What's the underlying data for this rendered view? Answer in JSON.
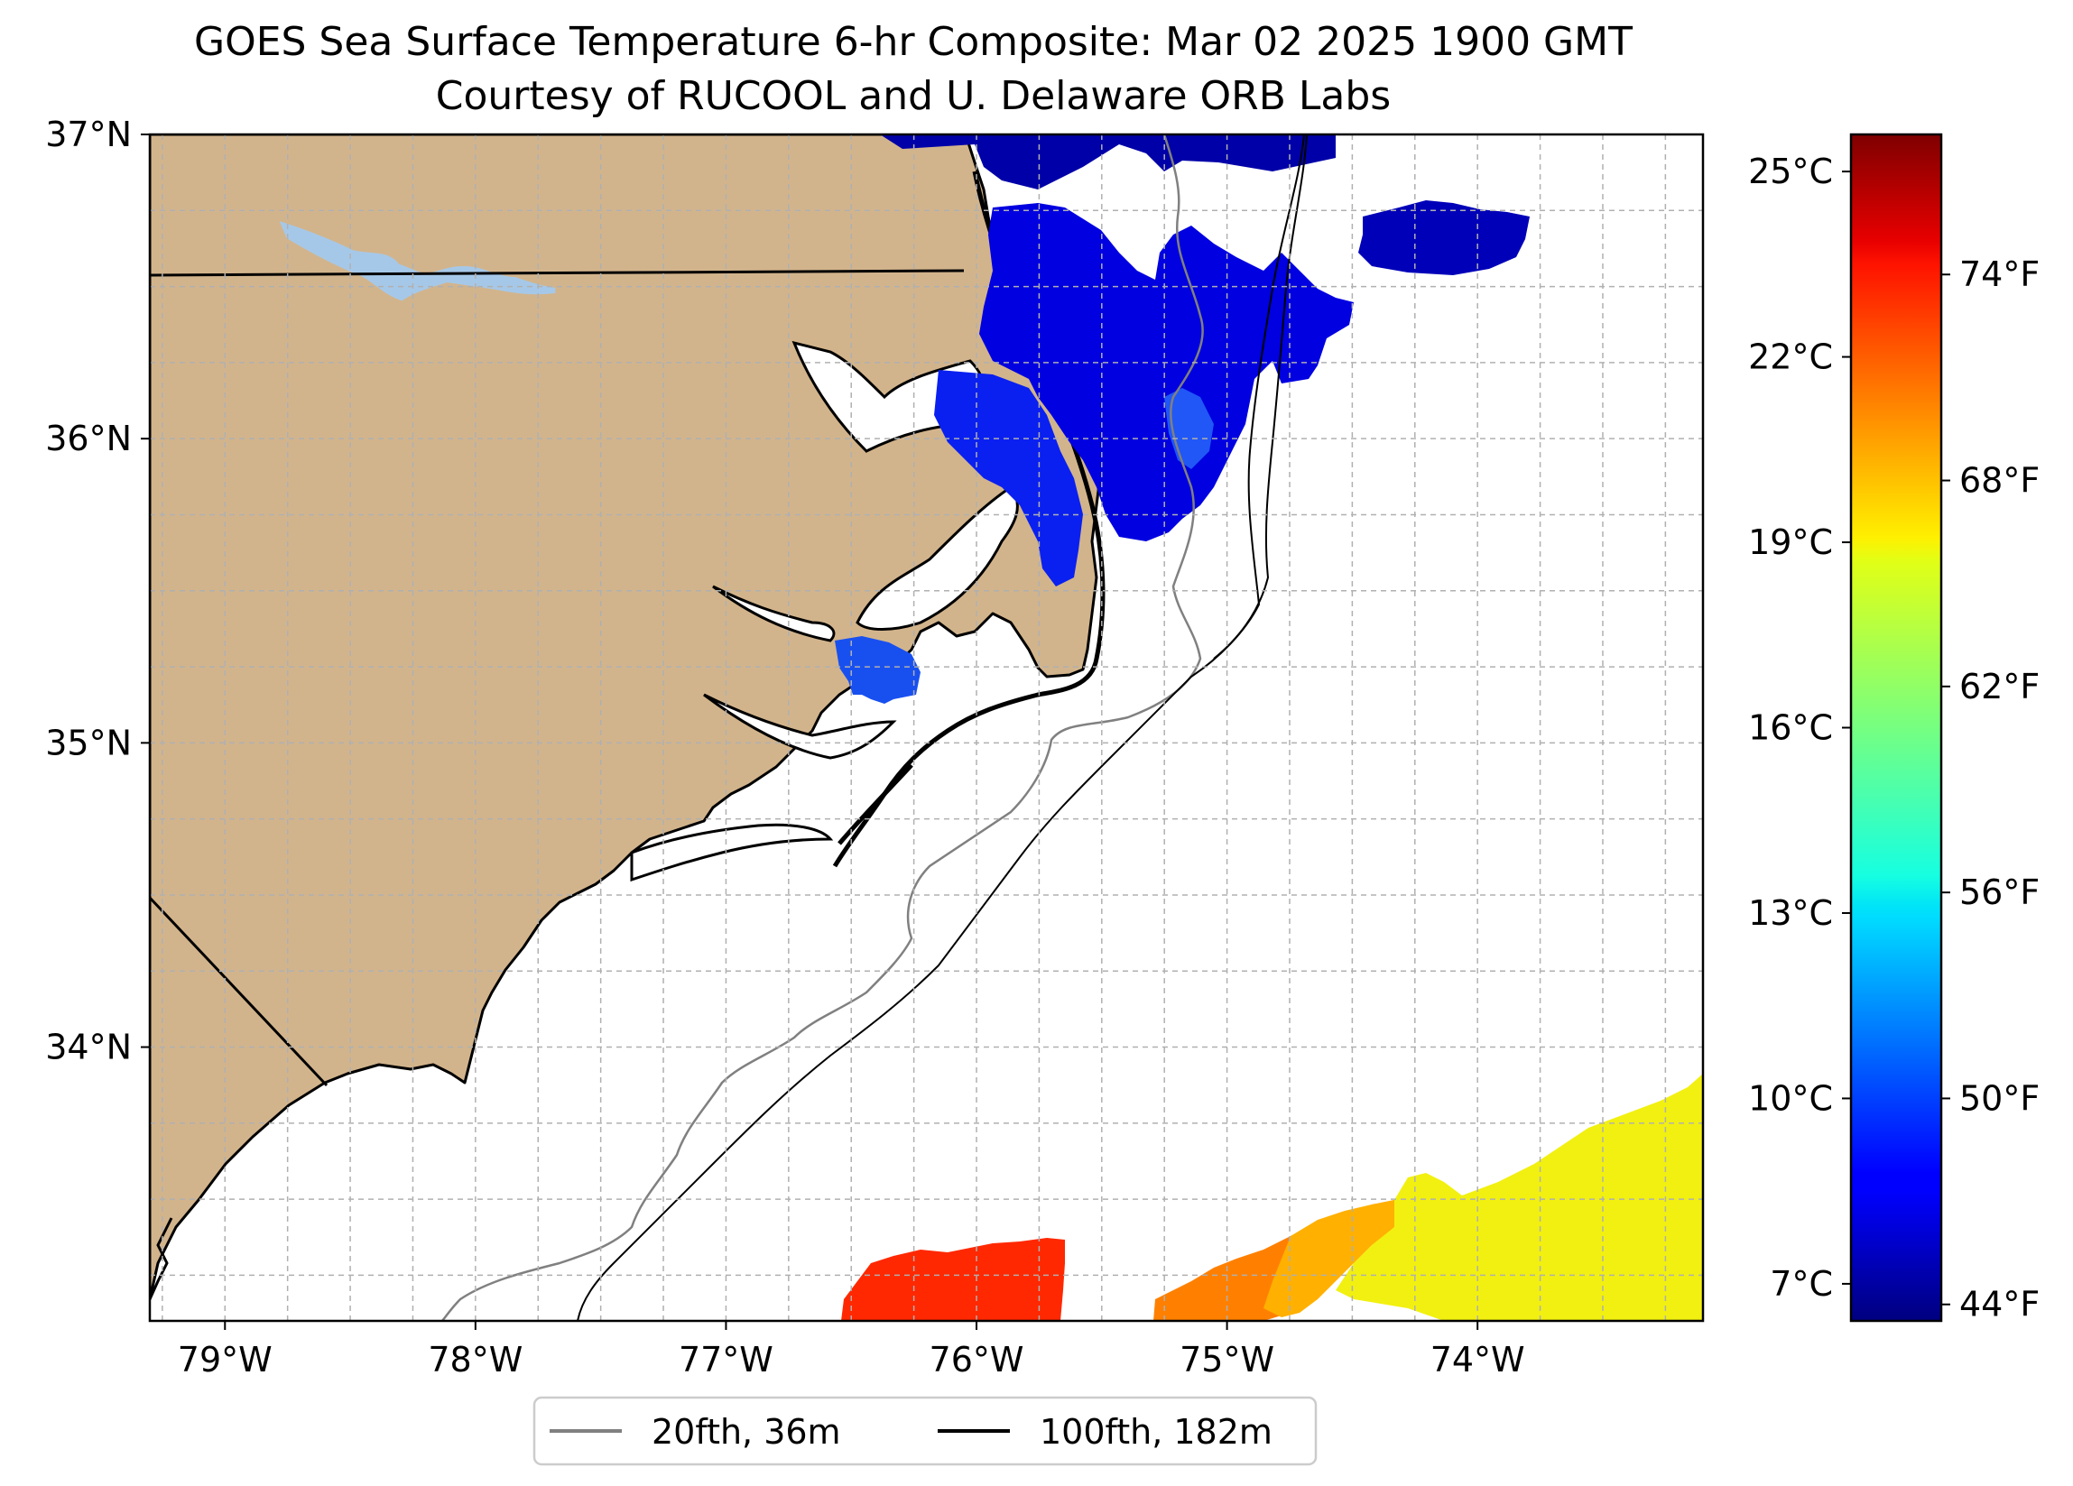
{
  "title_line1": "GOES Sea Surface Temperature 6-hr Composite: Mar 02 2025 1900 GMT",
  "title_line2": "Courtesy of RUCOOL and U. Delaware ORB Labs",
  "map": {
    "lon_range": [
      -79.3,
      -73.1
    ],
    "lat_range": [
      33.1,
      37.0
    ],
    "projection": "equirectangular",
    "grid": true,
    "land_color": "#d2b48c",
    "lake_color": "#a6c8e8",
    "colormap": "jet",
    "lon_ticks": [
      {
        "value": -79,
        "label": "79°W"
      },
      {
        "value": -78,
        "label": "78°W"
      },
      {
        "value": -77,
        "label": "77°W"
      },
      {
        "value": -76,
        "label": "76°W"
      },
      {
        "value": -75,
        "label": "75°W"
      },
      {
        "value": -74,
        "label": "74°W"
      }
    ],
    "lat_ticks": [
      {
        "value": 37,
        "label": "37°N"
      },
      {
        "value": 36,
        "label": "36°N"
      },
      {
        "value": 35,
        "label": "35°N"
      },
      {
        "value": 34,
        "label": "34°N"
      }
    ]
  },
  "legend": {
    "placement": "bottom-center",
    "items": [
      {
        "label": "20fth, 36m",
        "color": "#808080"
      },
      {
        "label": "100fth, 182m",
        "color": "#000000"
      }
    ]
  },
  "colorbar": {
    "range_c": [
      6.4,
      25.6
    ],
    "celsius_ticks": [
      {
        "value": 7,
        "label": "7°C"
      },
      {
        "value": 10,
        "label": "10°C"
      },
      {
        "value": 13,
        "label": "13°C"
      },
      {
        "value": 16,
        "label": "16°C"
      },
      {
        "value": 19,
        "label": "19°C"
      },
      {
        "value": 22,
        "label": "22°C"
      },
      {
        "value": 25,
        "label": "25°C"
      }
    ],
    "fahrenheit_ticks": [
      {
        "value": 44,
        "label": "44°F"
      },
      {
        "value": 50,
        "label": "50°F"
      },
      {
        "value": 56,
        "label": "56°F"
      },
      {
        "value": 62,
        "label": "62°F"
      },
      {
        "value": 68,
        "label": "68°F"
      },
      {
        "value": 74,
        "label": "74°F"
      }
    ]
  }
}
